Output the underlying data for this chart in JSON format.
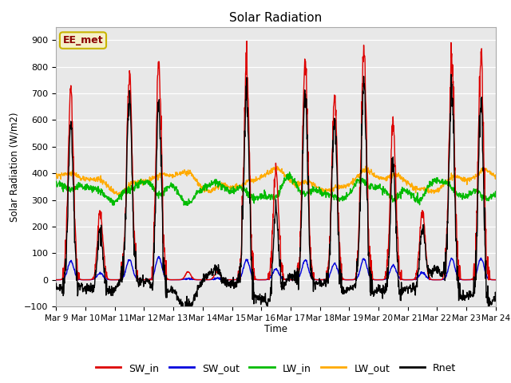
{
  "title": "Solar Radiation",
  "ylabel": "Solar Radiation (W/m2)",
  "xlabel": "Time",
  "ylim": [
    -100,
    950
  ],
  "yticks": [
    -100,
    0,
    100,
    200,
    300,
    400,
    500,
    600,
    700,
    800,
    900
  ],
  "bg_color": "#e8e8e8",
  "annotation_text": "EE_met",
  "annotation_bg": "#f5f0c8",
  "annotation_border": "#c8b400",
  "xtick_labels": [
    "Mar 9",
    "Mar 10",
    "Mar 11",
    "Mar 12",
    "Mar 13",
    "Mar 14",
    "Mar 15",
    "Mar 16",
    "Mar 17",
    "Mar 18",
    "Mar 19",
    "Mar 20",
    "Mar 21",
    "Mar 22",
    "Mar 23",
    "Mar 24"
  ],
  "series": {
    "SW_in": {
      "color": "#dd0000",
      "lw": 1.0
    },
    "SW_out": {
      "color": "#0000dd",
      "lw": 1.0
    },
    "LW_in": {
      "color": "#00bb00",
      "lw": 1.0
    },
    "LW_out": {
      "color": "#ffaa00",
      "lw": 1.0
    },
    "Rnet": {
      "color": "#000000",
      "lw": 1.0
    }
  },
  "sw_in_peaks": [
    710,
    260,
    775,
    825,
    30,
    30,
    820,
    420,
    815,
    690,
    875,
    580,
    260,
    825,
    825,
    30
  ],
  "sw_out_peaks": [
    70,
    25,
    75,
    85,
    5,
    5,
    75,
    40,
    75,
    60,
    80,
    55,
    28,
    80,
    80,
    5
  ],
  "lw_in_base": 340,
  "lw_out_base": 360,
  "n_days": 15
}
